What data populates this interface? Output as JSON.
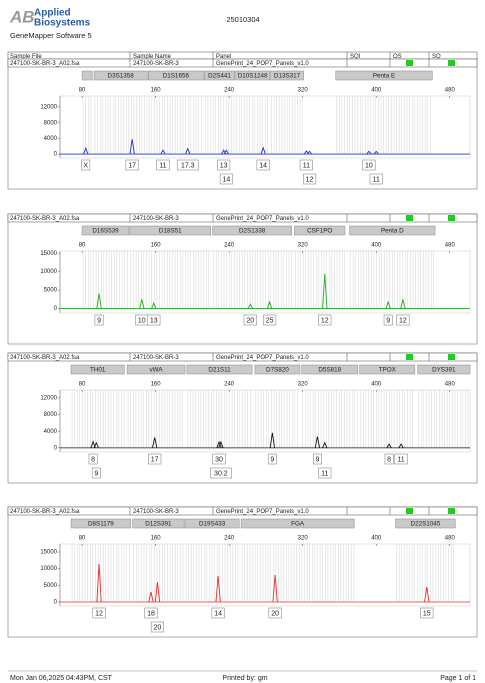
{
  "header": {
    "logo_mark": "AB",
    "logo_line1": "Applied",
    "logo_line2": "Biosystems",
    "software": "GeneMapper Software 5",
    "run": "25010304"
  },
  "columns": [
    "Sample File",
    "Sample Name",
    "Panel",
    "SQI",
    "OS",
    "SQ"
  ],
  "chart_data": [
    {
      "type": "peaks",
      "sample_file": "247100-SK-BR-3_A02.fsa",
      "sample_name": "247100-SK-BR-3",
      "panel": "GenePrint_24_POP7_Panels_v1.0",
      "color": "#2233cc",
      "loci": [
        {
          "name": null,
          "range": [
            80,
            91
          ]
        },
        {
          "name": "D3S1358",
          "range": [
            93,
            151
          ]
        },
        {
          "name": "D1S1656",
          "range": [
            152,
            212
          ]
        },
        {
          "name": "D2S441",
          "range": [
            213,
            246
          ]
        },
        {
          "name": "D10S1248",
          "range": [
            247,
            284
          ]
        },
        {
          "name": "D13S317",
          "range": [
            285,
            321
          ]
        },
        {
          "name": "Penta E",
          "range": [
            356,
            461
          ]
        }
      ],
      "xlim": [
        56,
        502
      ],
      "xticks": [
        80,
        160,
        240,
        320,
        400,
        480
      ],
      "ylim": [
        -1000,
        14800
      ],
      "yticks": [
        0,
        4000,
        8000,
        12000
      ],
      "x": [
        84,
        134.5,
        168,
        195,
        234,
        237,
        277,
        324,
        327.5,
        392,
        400
      ],
      "values": [
        1500,
        3800,
        1000,
        1400,
        1000,
        1000,
        1600,
        800,
        700,
        700,
        700
      ],
      "labels": [
        "X",
        "17",
        "11",
        "17.3",
        "13",
        "14",
        "14",
        "11",
        "12",
        "10",
        "11"
      ]
    },
    {
      "type": "peaks",
      "sample_file": "247100-SK-BR-3_A02.fsa",
      "sample_name": "247100-SK-BR-3",
      "panel": "GenePrint_24_POP7_Panels_v1.0",
      "color": "#22aa22",
      "loci": [
        {
          "name": "D16S539",
          "range": [
            80,
            131
          ]
        },
        {
          "name": "D18S51",
          "range": [
            132,
            220
          ]
        },
        {
          "name": "D2S1338",
          "range": [
            222,
            308
          ]
        },
        {
          "name": "CSF1PO",
          "range": [
            311,
            366
          ]
        },
        {
          "name": "Penta D",
          "range": [
            371,
            464
          ]
        }
      ],
      "xlim": [
        56,
        502
      ],
      "xticks": [
        80,
        160,
        240,
        320,
        400,
        480
      ],
      "ylim": [
        -1200,
        15600
      ],
      "yticks": [
        0,
        5000,
        10000,
        15000
      ],
      "x": [
        98.5,
        145,
        158,
        263,
        284,
        344,
        413,
        429
      ],
      "values": [
        4100,
        2500,
        1500,
        1200,
        1800,
        9400,
        1800,
        2500
      ],
      "labels": [
        "9",
        "10",
        "13",
        "20",
        "25",
        "12",
        "9",
        "12"
      ]
    },
    {
      "type": "peaks",
      "sample_file": "247100-SK-BR-3_A02.fsa",
      "sample_name": "247100-SK-BR-3",
      "panel": "GenePrint_24_POP7_Panels_v1.0",
      "color": "#111111",
      "loci": [
        {
          "name": "TH01",
          "range": [
            68,
            126
          ]
        },
        {
          "name": "vWA",
          "range": [
            129,
            192
          ]
        },
        {
          "name": "D21S11",
          "range": [
            194,
            265
          ]
        },
        {
          "name": "D7S820",
          "range": [
            268,
            317
          ]
        },
        {
          "name": "D5S818",
          "range": [
            319,
            380
          ]
        },
        {
          "name": "TPOX",
          "range": [
            382,
            442
          ]
        },
        {
          "name": "DYS391",
          "range": [
            445,
            502
          ]
        }
      ],
      "xlim": [
        56,
        502
      ],
      "xticks": [
        80,
        160,
        240,
        320,
        400,
        480
      ],
      "ylim": [
        -1000,
        13900
      ],
      "yticks": [
        0,
        4000,
        8000,
        12000
      ],
      "x": [
        92,
        95.5,
        159,
        229,
        231,
        287,
        336,
        344,
        414,
        427
      ],
      "values": [
        1500,
        1200,
        2500,
        1400,
        1400,
        3600,
        2700,
        1200,
        900,
        900
      ],
      "labels": [
        "8",
        "9",
        "17",
        "30",
        "30.2",
        "9",
        "9",
        "11",
        "8",
        "11"
      ]
    },
    {
      "type": "peaks",
      "sample_file": "247100-SK-BR-3_A02.fsa",
      "sample_name": "247100-SK-BR-3",
      "panel": "GenePrint_24_POP7_Panels_v1.0",
      "color": "#e03030",
      "loci": [
        {
          "name": "D8S1179",
          "range": [
            68,
            133
          ]
        },
        {
          "name": "D12S391",
          "range": [
            135,
            191
          ]
        },
        {
          "name": "D19S433",
          "range": [
            192,
            251
          ]
        },
        {
          "name": "FGA",
          "range": [
            253,
            376
          ]
        },
        {
          "name": "D22S1045",
          "range": [
            421,
            486
          ]
        }
      ],
      "xlim": [
        56,
        502
      ],
      "xticks": [
        80,
        160,
        240,
        320,
        400,
        480
      ],
      "ylim": [
        -1200,
        17400
      ],
      "yticks": [
        0,
        5000,
        10000,
        15000
      ],
      "x": [
        98.5,
        155,
        162,
        228,
        290,
        455
      ],
      "values": [
        11400,
        3000,
        6000,
        7800,
        8100,
        4500
      ],
      "labels": [
        "12",
        "18",
        "20",
        "14",
        "20",
        "15"
      ]
    }
  ],
  "footer": {
    "date": "Mon Jan 06,2025 04:43PM, CST",
    "printed_by": "Printed by: gm",
    "page": "Page 1 of 1"
  }
}
